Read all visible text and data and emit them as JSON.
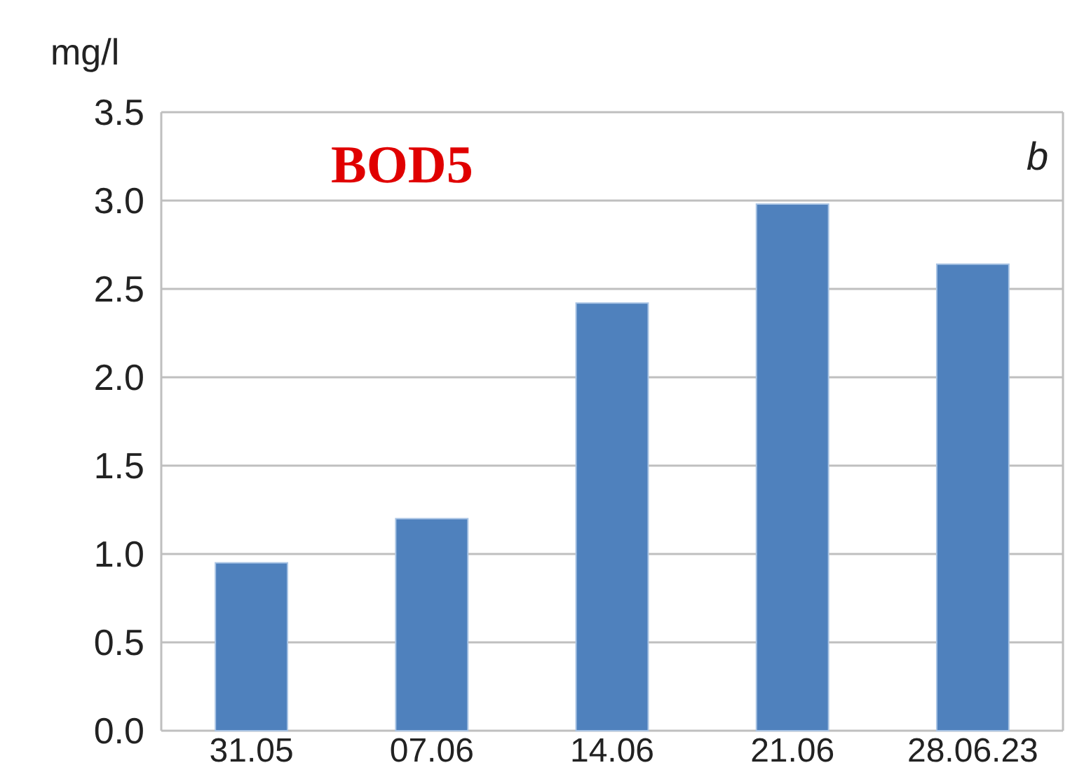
{
  "chart_data": {
    "type": "bar",
    "title": "BOD5",
    "ylabel": "mg/l",
    "annotations": [
      "b"
    ],
    "categories": [
      "31.05",
      "07.06",
      "14.06",
      "21.06",
      "28.06.23"
    ],
    "values": [
      0.95,
      1.2,
      2.42,
      2.98,
      2.64
    ],
    "color": "#4f81bd",
    "ylim": [
      0,
      3.5
    ],
    "yticks": [
      {
        "value": 0,
        "label": "0.0"
      },
      {
        "value": 0.5,
        "label": "0.5"
      },
      {
        "value": 1,
        "label": "1.0"
      },
      {
        "value": 1.5,
        "label": "1.5"
      },
      {
        "value": 2,
        "label": "2.0"
      },
      {
        "value": 2.5,
        "label": "2.5"
      },
      {
        "value": 3,
        "label": "3.0"
      },
      {
        "value": 3.5,
        "label": "3.5"
      }
    ],
    "grid": true
  }
}
